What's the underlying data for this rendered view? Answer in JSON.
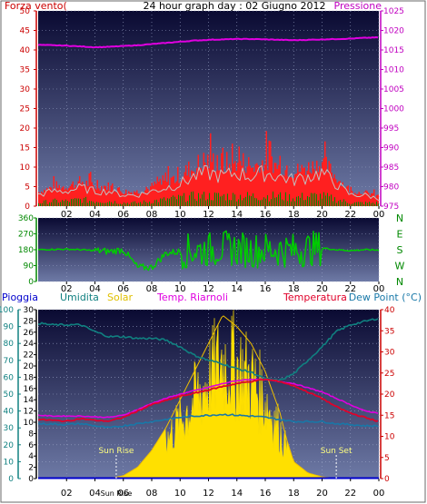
{
  "title": "24 hour graph day : 02 Giugno 2012",
  "colors": {
    "plot_top": "#0a0a32",
    "plot_bottom": "#6e7aa6",
    "grid": "#9aa4c6",
    "wind": "#ff2020",
    "gust": "#c0c0c0",
    "wind_avg": "#008800",
    "pressure": "#e000e0",
    "direction": "#00cc00",
    "solar": "#ffe000",
    "humidity": "#108080",
    "temperature": "#e0002a",
    "indoor": "#e000e0",
    "dewpoint": "#1878a8",
    "rain": "#0000cc"
  },
  "chart_data": [
    {
      "id": "wind-pressure",
      "type": "line",
      "ylabel_left": "Forza vento(",
      "ylabel_right": "Pressione",
      "x_ticks": [
        "02",
        "04",
        "06",
        "08",
        "10",
        "12",
        "14",
        "16",
        "18",
        "20",
        "22",
        "00"
      ],
      "y_left": {
        "range": [
          0,
          50
        ],
        "ticks": [
          "0",
          "5",
          "10",
          "15",
          "20",
          "25",
          "30",
          "35",
          "40",
          "45",
          "50"
        ]
      },
      "y_right": {
        "range": [
          975,
          1025
        ],
        "ticks": [
          "975",
          "980",
          "985",
          "990",
          "995",
          "1000",
          "1005",
          "1010",
          "1015",
          "1020",
          "1025"
        ]
      },
      "series": [
        {
          "key": "pressure",
          "axis": "right",
          "x": [
            0,
            1,
            2,
            3,
            4,
            5,
            6,
            7,
            8,
            9,
            10,
            11,
            12,
            13,
            14,
            15,
            16,
            17,
            18,
            19,
            20,
            21,
            22,
            23,
            24
          ],
          "values": [
            1016.3,
            1016.2,
            1016.1,
            1015.9,
            1015.7,
            1015.8,
            1016.0,
            1016.2,
            1016.5,
            1016.8,
            1017.1,
            1017.4,
            1017.6,
            1017.7,
            1017.8,
            1017.8,
            1017.7,
            1017.6,
            1017.5,
            1017.6,
            1017.7,
            1017.8,
            1017.9,
            1018.1,
            1018.2
          ]
        },
        {
          "key": "wind",
          "axis": "left",
          "x": [
            0,
            1,
            2,
            3,
            4,
            5,
            6,
            7,
            8,
            9,
            10,
            11,
            12,
            13,
            14,
            15,
            16,
            17,
            18,
            19,
            20,
            21,
            22,
            23,
            24
          ],
          "values": [
            3,
            4,
            4,
            5,
            4,
            4,
            3,
            3,
            4,
            5,
            6,
            8,
            9,
            8,
            9,
            8,
            9,
            8,
            7,
            8,
            9,
            6,
            3,
            3,
            2
          ]
        },
        {
          "key": "gust",
          "axis": "left",
          "x": [
            0,
            1,
            2,
            3,
            4,
            5,
            6,
            7,
            8,
            9,
            10,
            11,
            12,
            13,
            14,
            15,
            16,
            17,
            18,
            19,
            20,
            21,
            22,
            23,
            24
          ],
          "values": [
            6,
            8,
            9,
            10,
            9,
            8,
            6,
            6,
            8,
            11,
            14,
            17,
            21,
            18,
            19,
            18,
            20,
            17,
            14,
            16,
            18,
            12,
            6,
            5,
            4
          ]
        },
        {
          "key": "wind_avg",
          "axis": "left",
          "x": [
            0,
            1,
            2,
            3,
            4,
            5,
            6,
            7,
            8,
            9,
            10,
            11,
            12,
            13,
            14,
            15,
            16,
            17,
            18,
            19,
            20,
            21,
            22,
            23,
            24
          ],
          "values": [
            1,
            1.5,
            1.5,
            2,
            1.5,
            1.5,
            1,
            1,
            1.5,
            2,
            2.5,
            3,
            3,
            3,
            3,
            3,
            3,
            3,
            2.5,
            3,
            3,
            2,
            1,
            1,
            1
          ]
        }
      ]
    },
    {
      "id": "wind-direction",
      "type": "line",
      "x_ticks": [
        "02",
        "04",
        "06",
        "08",
        "10",
        "12",
        "14",
        "16",
        "18",
        "20",
        "22",
        "00"
      ],
      "y_left": {
        "range": [
          0,
          360
        ],
        "ticks": [
          "0",
          "90",
          "180",
          "270",
          "360"
        ]
      },
      "compass": [
        "N",
        "W",
        "S",
        "E",
        "N"
      ],
      "series": [
        {
          "key": "direction",
          "axis": "left",
          "x": [
            0,
            1,
            2,
            3,
            4,
            5,
            6,
            7,
            8,
            9,
            10,
            11,
            12,
            13,
            14,
            15,
            16,
            17,
            18,
            19,
            20,
            21,
            22,
            23,
            24
          ],
          "values": [
            180,
            182,
            183,
            180,
            175,
            170,
            180,
            80,
            80,
            160,
            170,
            175,
            180,
            190,
            185,
            175,
            180,
            180,
            175,
            185,
            190,
            180,
            175,
            180,
            178
          ]
        }
      ]
    },
    {
      "id": "temp-solar",
      "type": "line",
      "labels": {
        "rain": "Pioggia",
        "humidity": "Umidita",
        "solar": "Solar",
        "indoor": "Temp. Riarnoli",
        "temperature": "Temperatura",
        "dewpoint": "Dew Point (°C)"
      },
      "annotations": {
        "sunrise": "Sun Rise",
        "sunset": "Sun Set",
        "sunrise_tick": "Sun Rise"
      },
      "sunrise_x": 5.5,
      "sunset_x": 21.0,
      "x_ticks": [
        "02",
        "04",
        "06",
        "08",
        "10",
        "12",
        "14",
        "16",
        "18",
        "20",
        "22",
        "00"
      ],
      "y_humidity": {
        "range": [
          0,
          100
        ],
        "ticks": [
          "0",
          "10",
          "20",
          "30",
          "40",
          "50",
          "60",
          "70",
          "80",
          "90",
          "100"
        ]
      },
      "y_rain": {
        "range": [
          0,
          30
        ],
        "ticks": [
          "0",
          "2",
          "4",
          "6",
          "8",
          "10",
          "12",
          "14",
          "16",
          "18",
          "20",
          "22",
          "24",
          "26",
          "28",
          "30"
        ]
      },
      "y_temp": {
        "range": [
          0,
          40
        ],
        "ticks": [
          "0",
          "5",
          "10",
          "15",
          "20",
          "25",
          "30",
          "35",
          "40"
        ]
      },
      "series": [
        {
          "key": "solar",
          "axis": "solar",
          "x": [
            0,
            5,
            6,
            7,
            8,
            9,
            10,
            11,
            12,
            13,
            14,
            15,
            16,
            17,
            17.5,
            18,
            19,
            20,
            21,
            24
          ],
          "values": [
            0,
            0,
            0.5,
            2,
            5,
            9,
            14,
            19,
            24,
            29,
            27,
            24,
            19,
            12,
            7,
            3,
            1,
            0.3,
            0,
            0
          ]
        },
        {
          "key": "humidity",
          "axis": "humidity",
          "x": [
            0,
            1,
            2,
            3,
            4,
            5,
            6,
            7,
            8,
            9,
            10,
            11,
            12,
            13,
            14,
            15,
            16,
            17,
            18,
            19,
            20,
            21,
            22,
            23,
            24
          ],
          "values": [
            92,
            91,
            91,
            91,
            87,
            84,
            84,
            83,
            83,
            82,
            78,
            73,
            70,
            68,
            65,
            63,
            59,
            58,
            62,
            70,
            78,
            87,
            91,
            93,
            95
          ]
        },
        {
          "key": "temperature",
          "axis": "temp",
          "x": [
            0,
            1,
            2,
            3,
            4,
            5,
            6,
            7,
            8,
            9,
            10,
            11,
            12,
            13,
            14,
            15,
            16,
            17,
            18,
            19,
            20,
            21,
            22,
            23,
            24
          ],
          "values": [
            14,
            13.8,
            13.6,
            14.2,
            13.8,
            13.6,
            14.5,
            16,
            17.5,
            18.5,
            19.5,
            20.2,
            21,
            21.8,
            22.5,
            23,
            23.5,
            23,
            22,
            20.5,
            19,
            17,
            15.5,
            14.5,
            13.5
          ]
        },
        {
          "key": "indoor",
          "axis": "temp",
          "x": [
            0,
            1,
            2,
            3,
            4,
            5,
            6,
            7,
            8,
            9,
            10,
            11,
            12,
            13,
            14,
            15,
            16,
            17,
            18,
            19,
            20,
            21,
            22,
            23,
            24
          ],
          "values": [
            15,
            14.8,
            14.8,
            14.8,
            14.6,
            14.5,
            15,
            16.3,
            17.8,
            19,
            20,
            20.8,
            21.6,
            22.5,
            23.2,
            23.5,
            23.4,
            23,
            22.5,
            21.5,
            20.5,
            19,
            17.5,
            16,
            15.5
          ]
        },
        {
          "key": "dewpoint",
          "axis": "temp",
          "x": [
            0,
            1,
            2,
            3,
            4,
            5,
            6,
            7,
            8,
            9,
            10,
            11,
            12,
            13,
            14,
            15,
            16,
            17,
            18,
            19,
            20,
            21,
            22,
            23,
            24
          ],
          "values": [
            13,
            12.9,
            12.8,
            13,
            12.5,
            12,
            12.5,
            13,
            13.5,
            14,
            14.5,
            14.8,
            15,
            15.2,
            15,
            14.8,
            14.5,
            14,
            13.5,
            13.5,
            13.5,
            13,
            12.8,
            12.5,
            12.5
          ]
        },
        {
          "key": "rain",
          "axis": "rain",
          "x": [
            0,
            24
          ],
          "values": [
            0,
            0
          ]
        }
      ]
    }
  ]
}
